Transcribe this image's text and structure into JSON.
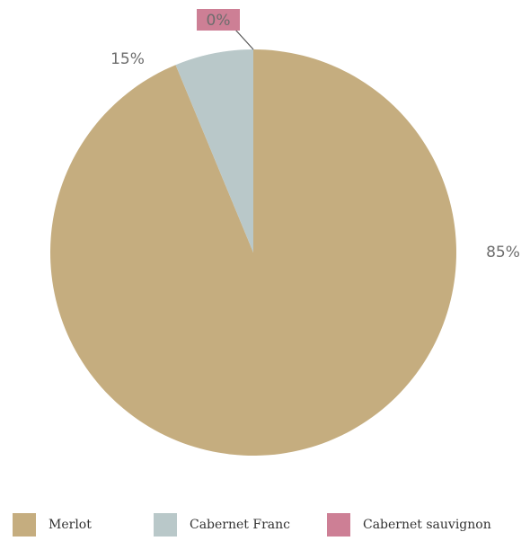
{
  "chart_data": {
    "type": "pie",
    "slices": [
      {
        "name": "Merlot",
        "value": 85,
        "label": "85%",
        "color": "#c5ad7f"
      },
      {
        "name": "Cabernet Franc",
        "value": 15,
        "label": "15%",
        "color": "#b9c8c9"
      },
      {
        "name": "Cabernet sauvignon",
        "value": 0,
        "label": "0%",
        "color": "#cd7f95"
      }
    ],
    "legend_position": "bottom",
    "start_angle": "top",
    "direction": "counterclockwise-from-top-for-small-slices"
  }
}
